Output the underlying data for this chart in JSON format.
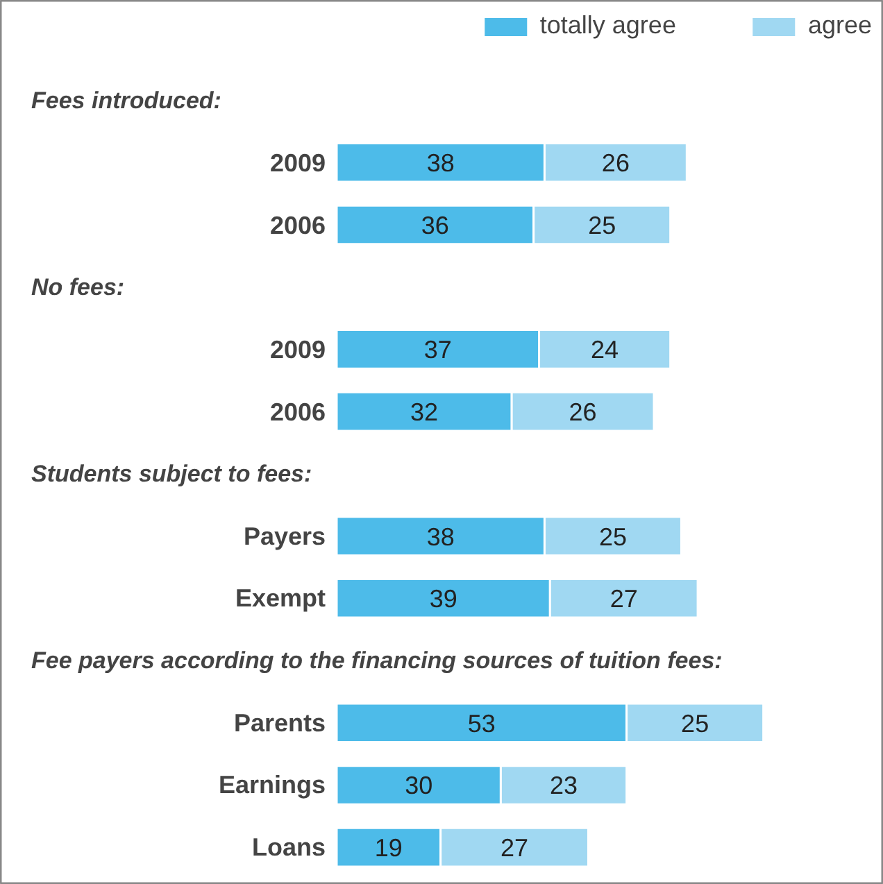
{
  "chart_data": {
    "type": "bar",
    "orientation": "horizontal",
    "stacked": true,
    "data_labels": true,
    "legend": "top right",
    "grid": false,
    "annotations": [
      "Fees introduced:",
      "No fees:",
      "Students subject to fees:",
      "Fee payers according to the financing sources of tuition fees:"
    ],
    "categories": [
      null,
      "2009",
      "2006",
      null,
      "2009",
      "2006",
      null,
      "Payers",
      "Exempt",
      null,
      "Parents",
      "Earnings",
      "Loans"
    ],
    "series": [
      {
        "name": "totally agree",
        "color": "#4dbbe9",
        "values": [
          null,
          38,
          36,
          null,
          37,
          32,
          null,
          38,
          39,
          null,
          53,
          30,
          19
        ]
      },
      {
        "name": "agree",
        "color": "#a0d8f2",
        "values": [
          null,
          26,
          25,
          null,
          24,
          26,
          null,
          25,
          27,
          null,
          25,
          23,
          27
        ]
      }
    ]
  }
}
